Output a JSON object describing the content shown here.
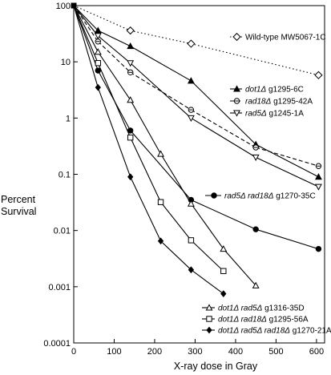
{
  "chart_data": {
    "type": "line",
    "xlabel": "X-ray dose in Gray",
    "ylabel_line1": "Percent",
    "ylabel_line2": "Survival",
    "y_scale": "log",
    "xlim": [
      0,
      620
    ],
    "ylim": [
      0.0001,
      100
    ],
    "x_ticks": [
      0,
      100,
      200,
      300,
      400,
      500,
      600
    ],
    "y_ticks": [
      {
        "value": 100,
        "label": "100"
      },
      {
        "value": 10,
        "label": "10"
      },
      {
        "value": 1,
        "label": "1"
      },
      {
        "value": 0.1,
        "label": "0.1"
      },
      {
        "value": 0.01,
        "label": "0.01"
      },
      {
        "value": 0.001,
        "label": "0.001"
      },
      {
        "value": 0.0001,
        "label": "0.0001"
      }
    ],
    "series": [
      {
        "id": "wt",
        "label_parts": [
          {
            "text": "Wild-type MW5067-1C",
            "italic": false
          }
        ],
        "marker": "diamond-open",
        "dash": "dotted",
        "color": "#000000",
        "x": [
          0,
          140,
          290,
          605
        ],
        "y": [
          100,
          36,
          21,
          5.8
        ]
      },
      {
        "id": "dot1",
        "label_parts": [
          {
            "text": "dot1Δ",
            "italic": true
          },
          {
            "text": " g1295-6C",
            "italic": false
          }
        ],
        "marker": "triangle-filled",
        "dash": "solid",
        "color": "#000000",
        "x": [
          0,
          60,
          140,
          290,
          450,
          605
        ],
        "y": [
          100,
          36,
          19,
          4.6,
          0.34,
          0.09
        ]
      },
      {
        "id": "rad18",
        "label_parts": [
          {
            "text": "rad18Δ",
            "italic": true
          },
          {
            "text": " g1295-42A",
            "italic": false
          }
        ],
        "marker": "circle-dot",
        "dash": "dashed",
        "color": "#000000",
        "x": [
          0,
          60,
          140,
          290,
          450,
          605
        ],
        "y": [
          100,
          23,
          6.5,
          1.4,
          0.3,
          0.14
        ]
      },
      {
        "id": "rad5",
        "label_parts": [
          {
            "text": "rad5Δ",
            "italic": true
          },
          {
            "text": " g1245-1A",
            "italic": false
          }
        ],
        "marker": "triangle-down-open",
        "dash": "solid",
        "color": "#000000",
        "x": [
          0,
          60,
          140,
          290,
          450,
          605
        ],
        "y": [
          100,
          29,
          9.5,
          1.0,
          0.2,
          0.06
        ]
      },
      {
        "id": "rad5rad18",
        "label_parts": [
          {
            "text": "rad5Δ rad18Δ",
            "italic": true
          },
          {
            "text": " g1270-35C",
            "italic": false
          }
        ],
        "marker": "circle-filled",
        "dash": "solid",
        "color": "#000000",
        "x": [
          0,
          60,
          140,
          290,
          450,
          605
        ],
        "y": [
          100,
          7,
          0.6,
          0.035,
          0.0105,
          0.0047
        ]
      },
      {
        "id": "dot1rad5",
        "label_parts": [
          {
            "text": "dot1Δ rad5Δ",
            "italic": true
          },
          {
            "text": " g1316-35D",
            "italic": false
          }
        ],
        "marker": "triangle-open",
        "dash": "solid",
        "color": "#000000",
        "x": [
          0,
          60,
          140,
          215,
          290,
          370,
          450
        ],
        "y": [
          100,
          15,
          2.1,
          0.23,
          0.03,
          0.0047,
          0.00105
        ]
      },
      {
        "id": "dot1rad18",
        "label_parts": [
          {
            "text": "dot1Δ rad18Δ",
            "italic": true
          },
          {
            "text": " g1295-56A",
            "italic": false
          }
        ],
        "marker": "square-open",
        "dash": "solid",
        "color": "#000000",
        "x": [
          0,
          60,
          140,
          215,
          290,
          370
        ],
        "y": [
          100,
          9.5,
          0.45,
          0.032,
          0.0067,
          0.0019
        ]
      },
      {
        "id": "dot1rad5rad18",
        "label_parts": [
          {
            "text": "dot1Δ rad5Δ rad18Δ",
            "italic": true
          },
          {
            "text": " g1270-21A",
            "italic": false
          }
        ],
        "marker": "diamond-filled",
        "dash": "solid",
        "color": "#000000",
        "x": [
          0,
          60,
          140,
          215,
          290,
          370
        ],
        "y": [
          100,
          3.5,
          0.09,
          0.0065,
          0.002,
          0.00075
        ]
      }
    ]
  }
}
